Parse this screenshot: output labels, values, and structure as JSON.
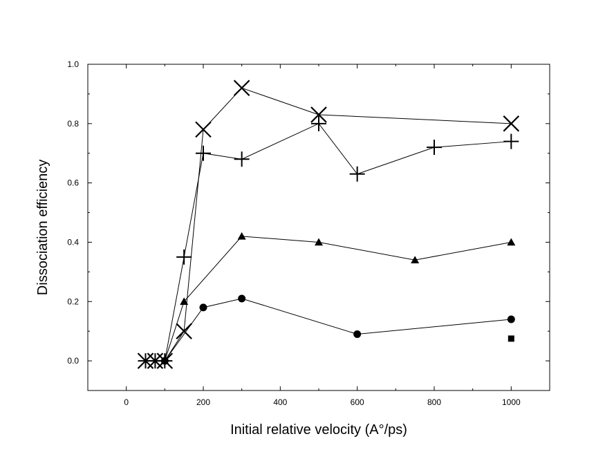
{
  "chart_data": {
    "type": "line",
    "title": "",
    "xlabel": "Initial relative velocity (A°/ps)",
    "ylabel": "Dissociation efficiency",
    "xlim": [
      -100,
      1100
    ],
    "ylim": [
      -0.1,
      1.0
    ],
    "xticks": [
      0,
      200,
      400,
      600,
      800,
      1000
    ],
    "yticks": [
      0.0,
      0.2,
      0.4,
      0.6,
      0.8,
      1.0
    ],
    "xtick_labels": [
      "0",
      "200",
      "400",
      "600",
      "800",
      "1000"
    ],
    "ytick_labels": [
      "0.0",
      "0.2",
      "0.4",
      "0.6",
      "0.8",
      "1.0"
    ],
    "grid": false,
    "series": [
      {
        "name": "x-marker series",
        "marker": "x",
        "connected": true,
        "x": [
          50,
          75,
          100,
          150,
          200,
          300,
          500,
          1000
        ],
        "y": [
          0.0,
          0.0,
          0.0,
          0.1,
          0.78,
          0.92,
          0.83,
          0.8
        ]
      },
      {
        "name": "plus-marker series",
        "marker": "plus",
        "connected": true,
        "x": [
          50,
          75,
          100,
          150,
          200,
          300,
          500,
          600,
          800,
          1000
        ],
        "y": [
          0.0,
          0.0,
          0.0,
          0.35,
          0.7,
          0.68,
          0.8,
          0.63,
          0.72,
          0.74
        ]
      },
      {
        "name": "triangle-marker series",
        "marker": "triangle",
        "connected": true,
        "x": [
          100,
          150,
          300,
          500,
          750,
          1000
        ],
        "y": [
          0.0,
          0.2,
          0.42,
          0.4,
          0.34,
          0.4
        ]
      },
      {
        "name": "circle-marker series",
        "marker": "circle",
        "connected": true,
        "x": [
          100,
          200,
          300,
          600,
          1000
        ],
        "y": [
          0.0,
          0.18,
          0.21,
          0.09,
          0.14
        ]
      },
      {
        "name": "square-marker series",
        "marker": "square",
        "connected": false,
        "x": [
          1000
        ],
        "y": [
          0.075
        ]
      }
    ]
  }
}
